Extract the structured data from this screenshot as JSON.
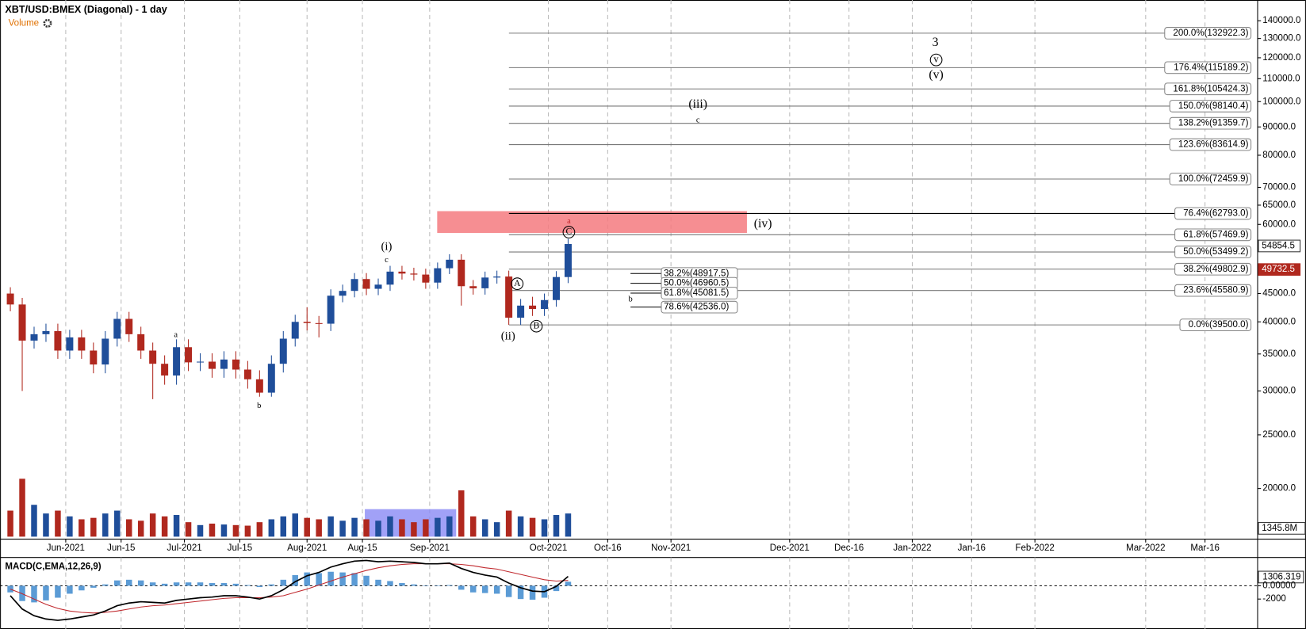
{
  "chart_data": [
    {
      "type": "candlestick",
      "title": "XBT/USD:BMEX (Diagonal) - 1 day",
      "x": [
        -14,
        -11,
        -8,
        -5,
        -2,
        1,
        4,
        7,
        10,
        13,
        16,
        19,
        22,
        25,
        28,
        31,
        34,
        37,
        40,
        43,
        46,
        49,
        52,
        55,
        58,
        61,
        64,
        67,
        70,
        73,
        76,
        79,
        82,
        85,
        88,
        91,
        94,
        97,
        100,
        103,
        106,
        109,
        112,
        115,
        118,
        121,
        124,
        127
      ],
      "open": [
        45000,
        43000,
        37000,
        38000,
        38500,
        35500,
        37500,
        35500,
        33500,
        37300,
        40500,
        38000,
        35500,
        33600,
        32000,
        36000,
        33800,
        33900,
        32900,
        34200,
        32800,
        31500,
        29800,
        33600,
        37300,
        40000,
        39800,
        39700,
        44600,
        45500,
        47800,
        45900,
        46700,
        49300,
        48900,
        48700,
        47100,
        50000,
        51800,
        46400,
        46000,
        48100,
        48300,
        40700,
        42800,
        42200,
        43800,
        48200
      ],
      "high": [
        46200,
        44200,
        39200,
        39700,
        39700,
        38700,
        38700,
        36700,
        38500,
        41700,
        41700,
        39200,
        36700,
        34800,
        37200,
        37200,
        35100,
        35100,
        35400,
        35400,
        34000,
        32700,
        34800,
        38500,
        41200,
        42500,
        41000,
        45800,
        46700,
        49000,
        49000,
        47900,
        50500,
        50500,
        50100,
        49900,
        51200,
        53000,
        53000,
        47600,
        49300,
        49500,
        49500,
        44000,
        44400,
        45000,
        49400,
        56500
      ],
      "low": [
        41800,
        30000,
        35800,
        36800,
        34300,
        34300,
        34300,
        32300,
        32300,
        36100,
        36800,
        34300,
        29000,
        30800,
        30800,
        32600,
        32600,
        31700,
        31700,
        31600,
        30300,
        29300,
        29300,
        32400,
        36100,
        38600,
        37500,
        38500,
        43400,
        44300,
        44700,
        44700,
        45500,
        47700,
        47500,
        45900,
        45900,
        48800,
        42800,
        44800,
        44800,
        46900,
        39500,
        39500,
        41000,
        41000,
        42600,
        47000
      ],
      "close": [
        43000,
        37000,
        38000,
        38500,
        35500,
        37500,
        35500,
        33500,
        37300,
        40500,
        38000,
        35500,
        33600,
        32000,
        36000,
        33800,
        33900,
        32900,
        34200,
        32800,
        31500,
        29800,
        33600,
        37300,
        40000,
        39800,
        39700,
        44600,
        45500,
        47800,
        45900,
        46700,
        49300,
        48900,
        48700,
        47100,
        50000,
        51800,
        46400,
        46000,
        48100,
        48300,
        40700,
        42800,
        42200,
        43800,
        48200,
        55300
      ],
      "up_color": "#1f4e9a",
      "down_color": "#b0281e",
      "xlim": [
        -16.6,
        301.3
      ],
      "xticks": [
        {
          "value": 0,
          "label": "Jun-2021"
        },
        {
          "value": 14,
          "label": "Jun-15"
        },
        {
          "value": 30,
          "label": "Jul-2021"
        },
        {
          "value": 44,
          "label": "Jul-15"
        },
        {
          "value": 61,
          "label": "Aug-2021"
        },
        {
          "value": 75,
          "label": "Aug-15"
        },
        {
          "value": 92,
          "label": "Sep-2021"
        },
        {
          "value": 122,
          "label": "Oct-2021"
        },
        {
          "value": 137,
          "label": "Oct-16"
        },
        {
          "value": 153,
          "label": "Nov-2021"
        },
        {
          "value": 183,
          "label": "Dec-2021"
        },
        {
          "value": 198,
          "label": "Dec-16"
        },
        {
          "value": 214,
          "label": "Jan-2022"
        },
        {
          "value": 229,
          "label": "Jan-16"
        },
        {
          "value": 245,
          "label": "Feb-2022"
        },
        {
          "value": 273,
          "label": "Mar-2022"
        },
        {
          "value": 288,
          "label": "Mar-16"
        }
      ],
      "ylim": [
        16200,
        152600
      ],
      "log_scale": true,
      "grid": true,
      "yticks": [
        {
          "value": 140000,
          "label": "140000.0"
        },
        {
          "value": 130000,
          "label": "130000.0"
        },
        {
          "value": 120000,
          "label": "120000.0"
        },
        {
          "value": 110000,
          "label": "110000.0"
        },
        {
          "value": 100000,
          "label": "100000.0"
        },
        {
          "value": 90000,
          "label": "90000.0"
        },
        {
          "value": 80000,
          "label": "80000.0"
        },
        {
          "value": 70000,
          "label": "70000.0"
        },
        {
          "value": 65000,
          "label": "65000.0"
        },
        {
          "value": 60000,
          "label": "60000.0"
        },
        {
          "value": 45000,
          "label": "45000.0"
        },
        {
          "value": 40000,
          "label": "40000.0"
        },
        {
          "value": 35000,
          "label": "35000.0"
        },
        {
          "value": 30000,
          "label": "30000.0"
        },
        {
          "value": 25000,
          "label": "25000.0"
        },
        {
          "value": 20000,
          "label": "20000.0"
        }
      ],
      "fib_levels": [
        {
          "value": 132922.3,
          "label": "200.0%(132922.3)"
        },
        {
          "value": 115189.2,
          "label": "176.4%(115189.2)"
        },
        {
          "value": 105424.3,
          "label": "161.8%(105424.3)"
        },
        {
          "value": 98140.4,
          "label": "150.0%(98140.4)"
        },
        {
          "value": 91359.7,
          "label": "138.2%(91359.7)"
        },
        {
          "value": 83614.9,
          "label": "123.6%(83614.9)"
        },
        {
          "value": 72459.9,
          "label": "100.0%(72459.9)"
        },
        {
          "value": 62793.0,
          "label": "76.4%(62793.0)"
        },
        {
          "value": 57469.9,
          "label": "61.8%(57469.9)"
        },
        {
          "value": 53499.2,
          "label": "50.0%(53499.2)"
        },
        {
          "value": 49802.9,
          "label": "38.2%(49802.9)"
        },
        {
          "value": 45580.9,
          "label": "23.6%(45580.9)"
        },
        {
          "value": 39500.0,
          "label": "0.0%(39500.0)"
        }
      ],
      "fib_levels_small": [
        {
          "value": 48917.5,
          "label": "38.2%(48917.5)"
        },
        {
          "value": 46960.5,
          "label": "50.0%(46960.5)"
        },
        {
          "value": 45081.5,
          "label": "61.8%(45081.5)"
        },
        {
          "value": 42536.0,
          "label": "78.6%(42536.0)"
        }
      ],
      "zone": {
        "x": [
          93.9,
          172.2
        ],
        "y": [
          57900,
          63400
        ],
        "color": "#f47a7f"
      },
      "price_markers": [
        {
          "value": 54854.5,
          "label": "54854.5"
        },
        {
          "value": 49732.5,
          "label": "49732.5"
        }
      ],
      "annotations": [
        "(i)",
        "c",
        "a",
        "b",
        "(ii)",
        "A",
        "B",
        "C",
        "a",
        "(iii)",
        "c",
        "(iv)",
        "3",
        "v",
        "(v)",
        "b"
      ]
    },
    {
      "type": "bar",
      "title": "Volume",
      "scale_label": "1345.8M",
      "values": [
        900,
        2000,
        1100,
        800,
        900,
        700,
        600,
        650,
        800,
        900,
        600,
        550,
        800,
        700,
        750,
        500,
        400,
        450,
        420,
        400,
        380,
        500,
        600,
        700,
        800,
        650,
        600,
        700,
        550,
        650,
        600,
        550,
        700,
        600,
        500,
        600,
        650,
        700,
        1600,
        700,
        600,
        500,
        900,
        700,
        650,
        600,
        750,
        800
      ],
      "ylim": [
        0,
        2300
      ],
      "zone": {
        "x": [
          75.6,
          98.7
        ],
        "y": [
          0,
          950
        ],
        "color": "#8a8af5"
      }
    },
    {
      "type": "macd",
      "title": "MACD(C,EMA,12,26,9)",
      "macd": [
        -1500,
        -3500,
        -4500,
        -5000,
        -5200,
        -5000,
        -4700,
        -4400,
        -3800,
        -3000,
        -2600,
        -2400,
        -2500,
        -2600,
        -2200,
        -2000,
        -1800,
        -1700,
        -1500,
        -1500,
        -1700,
        -2000,
        -1500,
        -600,
        600,
        1500,
        2000,
        2800,
        3300,
        3700,
        3800,
        3600,
        3700,
        3600,
        3500,
        3300,
        3300,
        3400,
        2600,
        2000,
        1600,
        1300,
        400,
        -300,
        -800,
        -900,
        -100,
        1400
      ],
      "signal": [
        -500,
        -1200,
        -2000,
        -2800,
        -3400,
        -3800,
        -4000,
        -4100,
        -4000,
        -3800,
        -3500,
        -3200,
        -3000,
        -2900,
        -2700,
        -2500,
        -2300,
        -2100,
        -1900,
        -1800,
        -1800,
        -1800,
        -1700,
        -1500,
        -1000,
        -500,
        100,
        700,
        1300,
        1800,
        2300,
        2700,
        3000,
        3200,
        3300,
        3300,
        3300,
        3300,
        3200,
        3000,
        2700,
        2500,
        2100,
        1700,
        1300,
        900,
        700,
        800
      ],
      "hist": [
        -1000,
        -2300,
        -2500,
        -2200,
        -1800,
        -1200,
        -700,
        -300,
        200,
        800,
        900,
        800,
        500,
        300,
        500,
        500,
        500,
        400,
        400,
        300,
        100,
        -200,
        200,
        900,
        1600,
        2000,
        1900,
        2100,
        2000,
        1900,
        1500,
        900,
        700,
        400,
        200,
        0,
        0,
        100,
        -600,
        -1000,
        -1100,
        -1200,
        -1700,
        -2000,
        -2100,
        -1800,
        -800,
        600
      ],
      "macd_color": "#000000",
      "signal_color": "#c0282d",
      "hist_color": "#5b9bd5",
      "ylim": [
        -6500,
        4000
      ],
      "yticks": [
        {
          "value": 1306.319,
          "label": "1306.319"
        },
        {
          "value": 0,
          "label": "0.00000"
        },
        -2000
      ]
    }
  ]
}
